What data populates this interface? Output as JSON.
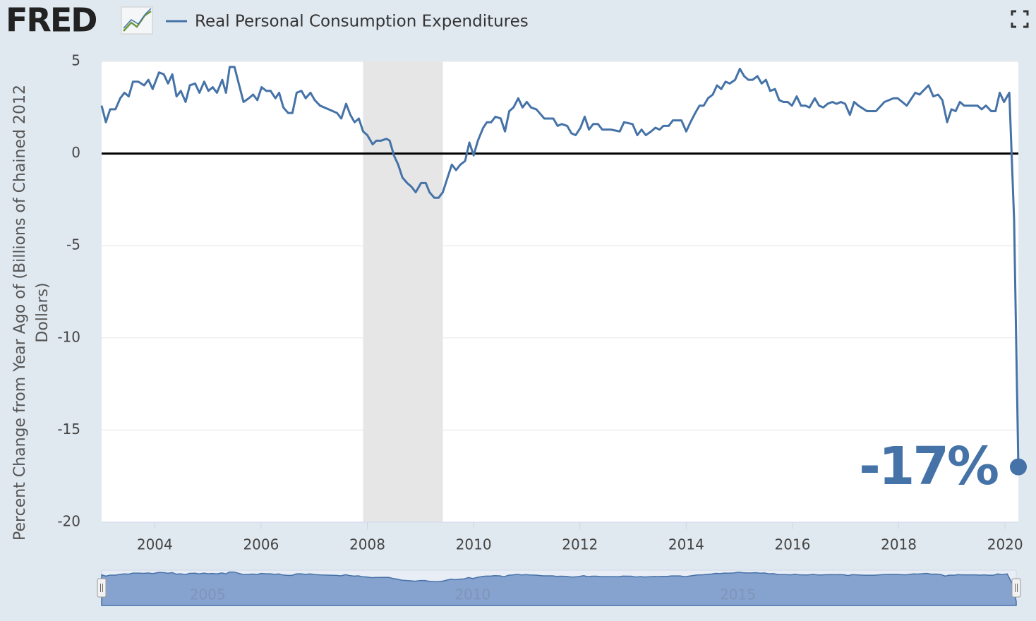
{
  "header": {
    "logo": "FRED"
  },
  "chart_data": {
    "type": "line",
    "ylabel": "Percent Change from Year Ago of (Billions of Chained 2012 Dollars)",
    "xlim": [
      2003,
      2020.25
    ],
    "ylim": [
      -20,
      5
    ],
    "xticks": [
      2004,
      2006,
      2008,
      2010,
      2012,
      2014,
      2016,
      2018,
      2020
    ],
    "yticks": [
      5,
      0,
      -5,
      -10,
      -15,
      -20
    ],
    "grid": true,
    "recessions": [
      [
        2007.92,
        2009.42
      ]
    ],
    "x": [
      2003.0,
      2003.08,
      2003.16,
      2003.26,
      2003.35,
      2003.43,
      2003.51,
      2003.59,
      2003.69,
      2003.8,
      2003.88,
      2003.96,
      2004.08,
      2004.17,
      2004.25,
      2004.33,
      2004.41,
      2004.49,
      2004.58,
      2004.66,
      2004.76,
      2004.84,
      2004.93,
      2005.01,
      2005.09,
      2005.17,
      2005.27,
      2005.34,
      2005.41,
      2005.5,
      2005.58,
      2005.67,
      2005.77,
      2005.85,
      2005.93,
      2006.01,
      2006.1,
      2006.18,
      2006.27,
      2006.34,
      2006.42,
      2006.51,
      2006.59,
      2006.67,
      2006.76,
      2006.84,
      2006.93,
      2007.01,
      2007.11,
      2007.27,
      2007.43,
      2007.51,
      2007.6,
      2007.68,
      2007.76,
      2007.84,
      2007.92,
      2008.0,
      2008.1,
      2008.17,
      2008.26,
      2008.36,
      2008.42,
      2008.5,
      2008.58,
      2008.66,
      2008.75,
      2008.83,
      2008.91,
      2009.01,
      2009.1,
      2009.17,
      2009.26,
      2009.34,
      2009.42,
      2009.51,
      2009.59,
      2009.67,
      2009.75,
      2009.84,
      2009.92,
      2010.0,
      2010.08,
      2010.18,
      2010.25,
      2010.33,
      2010.41,
      2010.51,
      2010.59,
      2010.67,
      2010.75,
      2010.84,
      2010.92,
      2011.0,
      2011.08,
      2011.18,
      2011.33,
      2011.5,
      2011.58,
      2011.66,
      2011.76,
      2011.84,
      2011.92,
      2012.01,
      2012.09,
      2012.17,
      2012.25,
      2012.34,
      2012.42,
      2012.58,
      2012.75,
      2012.83,
      2012.99,
      2013.08,
      2013.16,
      2013.24,
      2013.34,
      2013.42,
      2013.5,
      2013.57,
      2013.67,
      2013.75,
      2013.91,
      2014.0,
      2014.08,
      2014.17,
      2014.25,
      2014.33,
      2014.41,
      2014.5,
      2014.58,
      2014.66,
      2014.74,
      2014.82,
      2014.92,
      2015.01,
      2015.09,
      2015.17,
      2015.25,
      2015.34,
      2015.42,
      2015.5,
      2015.58,
      2015.67,
      2015.75,
      2015.83,
      2015.91,
      2015.99,
      2016.08,
      2016.16,
      2016.24,
      2016.32,
      2016.42,
      2016.5,
      2016.58,
      2016.66,
      2016.75,
      2016.83,
      2016.91,
      2016.99,
      2017.08,
      2017.16,
      2017.24,
      2017.4,
      2017.57,
      2017.73,
      2017.9,
      2017.98,
      2018.15,
      2018.31,
      2018.39,
      2018.56,
      2018.65,
      2018.74,
      2018.82,
      2018.91,
      2018.99,
      2019.07,
      2019.15,
      2019.23,
      2019.48,
      2019.56,
      2019.64,
      2019.74,
      2019.82,
      2019.9,
      2019.98,
      2020.08,
      2020.17,
      2020.25
    ],
    "series": [
      {
        "name": "Real Personal Consumption Expenditures",
        "color": "#4572a7",
        "values": [
          2.6,
          1.7,
          2.4,
          2.4,
          3.0,
          3.3,
          3.1,
          3.9,
          3.9,
          3.7,
          4.0,
          3.5,
          4.4,
          4.3,
          3.8,
          4.3,
          3.1,
          3.4,
          2.8,
          3.7,
          3.8,
          3.3,
          3.9,
          3.4,
          3.6,
          3.3,
          4.0,
          3.3,
          4.7,
          4.7,
          3.8,
          2.8,
          3.0,
          3.2,
          2.9,
          3.6,
          3.4,
          3.4,
          3.0,
          3.3,
          2.5,
          2.2,
          2.2,
          3.3,
          3.4,
          3.0,
          3.3,
          2.9,
          2.6,
          2.4,
          2.2,
          1.9,
          2.7,
          2.1,
          1.7,
          1.9,
          1.2,
          1.0,
          0.5,
          0.7,
          0.7,
          0.8,
          0.7,
          -0.1,
          -0.6,
          -1.3,
          -1.6,
          -1.8,
          -2.1,
          -1.6,
          -1.6,
          -2.1,
          -2.4,
          -2.4,
          -2.1,
          -1.3,
          -0.6,
          -0.9,
          -0.6,
          -0.4,
          0.6,
          -0.1,
          0.7,
          1.4,
          1.7,
          1.7,
          2.0,
          1.9,
          1.2,
          2.3,
          2.5,
          3.0,
          2.5,
          2.8,
          2.5,
          2.4,
          1.9,
          1.9,
          1.5,
          1.6,
          1.5,
          1.1,
          1.0,
          1.4,
          2.0,
          1.3,
          1.6,
          1.6,
          1.3,
          1.3,
          1.2,
          1.7,
          1.6,
          1.0,
          1.3,
          1.0,
          1.2,
          1.4,
          1.3,
          1.5,
          1.5,
          1.8,
          1.8,
          1.2,
          1.7,
          2.2,
          2.6,
          2.6,
          3.0,
          3.2,
          3.7,
          3.5,
          3.9,
          3.8,
          4.0,
          4.6,
          4.2,
          4.0,
          4.0,
          4.2,
          3.8,
          4.0,
          3.4,
          3.5,
          2.9,
          2.8,
          2.8,
          2.6,
          3.1,
          2.6,
          2.6,
          2.5,
          3.0,
          2.6,
          2.5,
          2.7,
          2.8,
          2.7,
          2.8,
          2.7,
          2.1,
          2.8,
          2.6,
          2.3,
          2.3,
          2.8,
          3.0,
          3.0,
          2.6,
          3.3,
          3.2,
          3.7,
          3.1,
          3.2,
          2.9,
          1.7,
          2.4,
          2.3,
          2.8,
          2.6,
          2.6,
          2.4,
          2.6,
          2.3,
          2.3,
          3.3,
          2.8,
          3.3,
          -3.6,
          -17.0
        ]
      }
    ],
    "annotation": "-17%",
    "navigator": {
      "xticks": [
        2005,
        2010,
        2015
      ]
    }
  }
}
